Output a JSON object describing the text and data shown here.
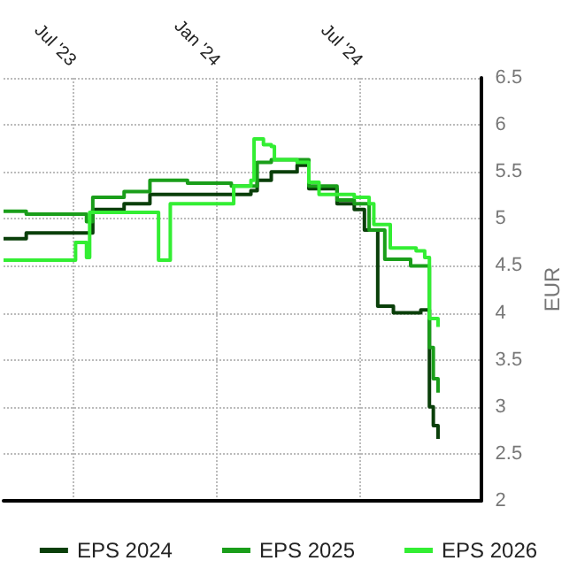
{
  "chart_data": {
    "type": "step",
    "ylabel": "EUR",
    "xlim": [
      "2023-04-04",
      "2024-12-04"
    ],
    "xticks": [
      {
        "value": "2023-07-01",
        "label": "Jul '23"
      },
      {
        "value": "2024-01-01",
        "label": "Jan '24"
      },
      {
        "value": "2024-07-01",
        "label": "Jul '24"
      }
    ],
    "ylim": [
      2,
      6.5
    ],
    "yticks": [
      2,
      2.5,
      3,
      3.5,
      4,
      4.5,
      5,
      5.5,
      6,
      6.5
    ],
    "grid": true,
    "legend": "bottom",
    "marker": "none",
    "line_style": "solid",
    "series": [
      {
        "name": "EPS 2024",
        "color": "#0a3f0a",
        "x": [
          "2023-04-04",
          "2023-05-03",
          "2023-07-27",
          "2023-09-05",
          "2023-10-08",
          "2024-02-14",
          "2024-02-22",
          "2024-03-11",
          "2024-04-13",
          "2024-04-28",
          "2024-06-03",
          "2024-06-25",
          "2024-07-08",
          "2024-07-25",
          "2024-08-14",
          "2024-09-18",
          "2024-09-29",
          "2024-10-04",
          "2024-10-10"
        ],
        "values": [
          4.79,
          4.85,
          5.1,
          5.16,
          5.26,
          5.3,
          5.41,
          5.5,
          5.57,
          5.32,
          5.16,
          5.1,
          4.88,
          4.07,
          4.0,
          4.03,
          3.0,
          2.8,
          2.66
        ]
      },
      {
        "name": "EPS 2025",
        "color": "#1a9e1a",
        "x": [
          "2023-04-04",
          "2023-05-03",
          "2023-07-19",
          "2023-07-27",
          "2023-09-05",
          "2023-10-08",
          "2023-11-25",
          "2024-01-20",
          "2024-02-22",
          "2024-03-11",
          "2024-04-13",
          "2024-04-28",
          "2024-06-03",
          "2024-06-25",
          "2024-07-14",
          "2024-08-03",
          "2024-09-05",
          "2024-09-29",
          "2024-10-04",
          "2024-10-10"
        ],
        "values": [
          5.08,
          5.05,
          4.97,
          5.23,
          5.29,
          5.41,
          5.38,
          5.35,
          5.6,
          5.63,
          5.63,
          5.35,
          5.2,
          5.16,
          4.88,
          4.57,
          4.5,
          3.63,
          3.3,
          3.15
        ]
      },
      {
        "name": "EPS 2026",
        "color": "#33ee33",
        "x": [
          "2023-04-04",
          "2023-07-05",
          "2023-07-19",
          "2023-07-23",
          "2023-10-19",
          "2023-11-03",
          "2024-01-23",
          "2024-02-14",
          "2024-02-18",
          "2024-03-01",
          "2024-03-11",
          "2024-03-15",
          "2024-04-13",
          "2024-04-28",
          "2024-05-11",
          "2024-06-25",
          "2024-07-14",
          "2024-07-20",
          "2024-08-10",
          "2024-09-12",
          "2024-09-23",
          "2024-09-29",
          "2024-10-10"
        ],
        "values": [
          4.56,
          4.75,
          4.59,
          5.07,
          4.56,
          5.16,
          5.35,
          5.41,
          5.85,
          5.79,
          5.77,
          5.63,
          5.6,
          5.39,
          5.26,
          5.23,
          5.16,
          4.94,
          4.69,
          4.66,
          4.59,
          3.94,
          3.85
        ]
      }
    ]
  }
}
